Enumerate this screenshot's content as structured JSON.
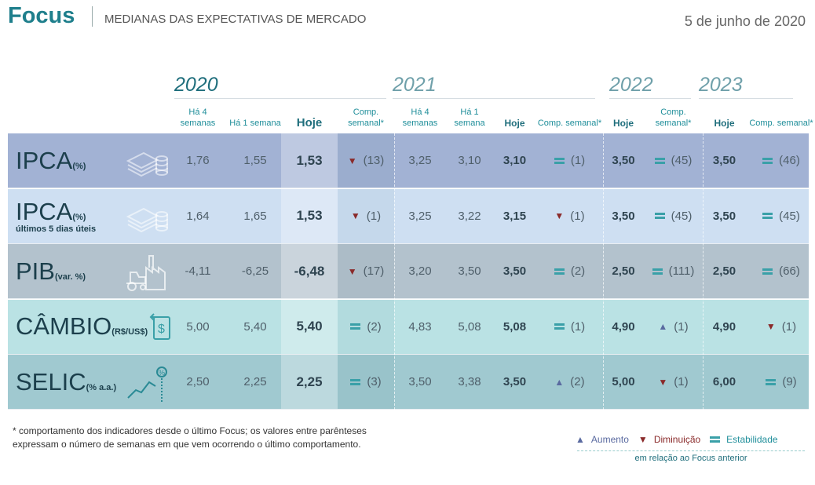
{
  "header": {
    "brand": "Focus",
    "subtitle": "MEDIANAS DAS EXPECTATIVAS DE MERCADO",
    "date": "5 de junho de 2020"
  },
  "years": [
    "2020",
    "2021",
    "2022",
    "2023"
  ],
  "columns": {
    "h4": "Há 4 semanas",
    "h1": "Há 1 semana",
    "hoje": "Hoje",
    "comp": "Comp. semanal*"
  },
  "rows": [
    {
      "name": "IPCA",
      "unit": "(%)",
      "sub": "",
      "icon": "money-coins-icon",
      "color": "#a2b2d4",
      "v": [
        "1,76",
        "1,55",
        "1,53",
        [
          "down",
          "(13)"
        ],
        "3,25",
        "3,10",
        "3,10",
        [
          "eq",
          "(1)"
        ],
        "3,50",
        [
          "eq",
          "(45)"
        ],
        "3,50",
        [
          "eq",
          "(46)"
        ]
      ]
    },
    {
      "name": "IPCA",
      "unit": "(%)",
      "sub": "últimos 5 dias úteis",
      "icon": "money-coins-icon",
      "color": "#cedff2",
      "v": [
        "1,64",
        "1,65",
        "1,53",
        [
          "down",
          "(1)"
        ],
        "3,25",
        "3,22",
        "3,15",
        [
          "down",
          "(1)"
        ],
        "3,50",
        [
          "eq",
          "(45)"
        ],
        "3,50",
        [
          "eq",
          "(45)"
        ]
      ]
    },
    {
      "name": "PIB",
      "unit": "(var. %)",
      "sub": "",
      "icon": "factory-tractor-icon",
      "color": "#b3c2cd",
      "v": [
        "-4,11",
        "-6,25",
        "-6,48",
        [
          "down",
          "(17)"
        ],
        "3,20",
        "3,50",
        "3,50",
        [
          "eq",
          "(2)"
        ],
        "2,50",
        [
          "eq",
          "(111)"
        ],
        "2,50",
        [
          "eq",
          "(66)"
        ]
      ]
    },
    {
      "name": "CÂMBIO",
      "unit": "(R$/US$)",
      "sub": "",
      "icon": "currency-exchange-icon",
      "color": "#bae2e4",
      "v": [
        "5,00",
        "5,40",
        "5,40",
        [
          "eq",
          "(2)"
        ],
        "4,83",
        "5,08",
        "5,08",
        [
          "eq",
          "(1)"
        ],
        "4,90",
        [
          "up",
          "(1)"
        ],
        "4,90",
        [
          "down",
          "(1)"
        ]
      ]
    },
    {
      "name": "SELIC",
      "unit": "(% a.a.)",
      "sub": "",
      "icon": "rate-chart-icon",
      "color": "#a0c9d0",
      "v": [
        "2,50",
        "2,25",
        "2,25",
        [
          "eq",
          "(3)"
        ],
        "3,50",
        "3,38",
        "3,50",
        [
          "up",
          "(2)"
        ],
        "5,00",
        [
          "down",
          "(1)"
        ],
        "6,00",
        [
          "eq",
          "(9)"
        ]
      ]
    }
  ],
  "footnote": "* comportamento dos indicadores desde o último Focus; os valores entre parênteses expressam o número de semanas em que vem ocorrendo o último comportamento.",
  "legend": {
    "up": "Aumento",
    "down": "Diminuição",
    "eq": "Estabilidade",
    "note": "em relação ao Focus anterior"
  },
  "colors": {
    "up": "#5a6aa0",
    "down": "#8a2a2a",
    "eq": "#3aa0a8",
    "brand": "#1f7f8c"
  }
}
